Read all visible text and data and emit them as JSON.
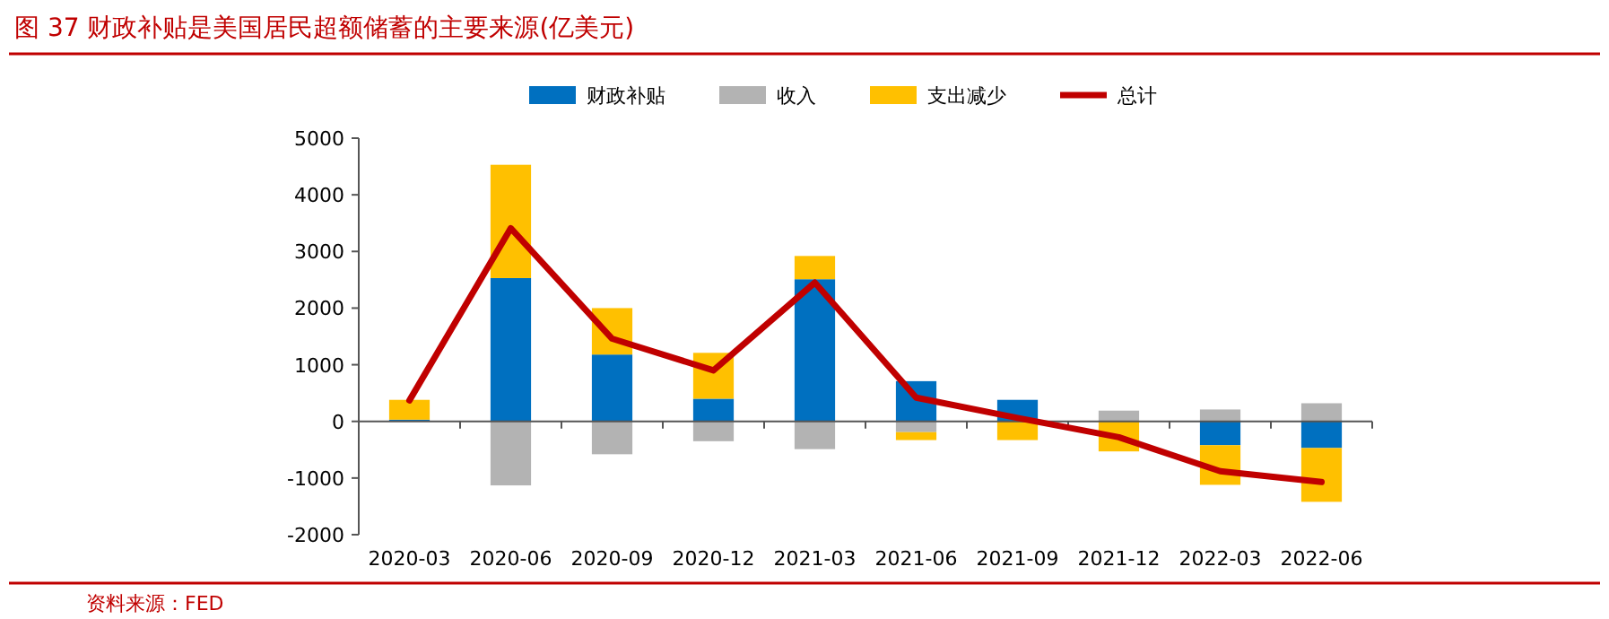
{
  "chart_data": {
    "type": "bar",
    "title": "图 37 财政补贴是美国居民超额储蓄的主要来源(亿美元)",
    "annotations": [
      "资料来源：FED"
    ],
    "categories": [
      "2020-03",
      "2020-06",
      "2020-09",
      "2020-12",
      "2021-03",
      "2021-06",
      "2021-09",
      "2021-12",
      "2022-03",
      "2022-06"
    ],
    "stacked": true,
    "ylim": [
      -2000,
      5000
    ],
    "yticks": [
      -2000,
      -1000,
      0,
      1000,
      2000,
      3000,
      4000,
      5000
    ],
    "legend": "top",
    "series": [
      {
        "name": "财政补贴",
        "color": "#0070c0",
        "values": [
          30,
          2530,
          1180,
          400,
          2510,
          710,
          380,
          0,
          -420,
          -470
        ]
      },
      {
        "name": "收入",
        "color": "#b3b3b3",
        "values": [
          0,
          -1130,
          -580,
          -350,
          -490,
          -190,
          0,
          190,
          210,
          320
        ]
      },
      {
        "name": "支出减少",
        "color": "#ffc000",
        "values": [
          350,
          2000,
          820,
          810,
          410,
          -140,
          -330,
          -530,
          -700,
          -950
        ]
      },
      {
        "name": "总计",
        "type": "line",
        "color": "#c00000",
        "values": [
          370,
          3410,
          1460,
          900,
          2450,
          420,
          60,
          -280,
          -880,
          -1070
        ]
      }
    ]
  }
}
